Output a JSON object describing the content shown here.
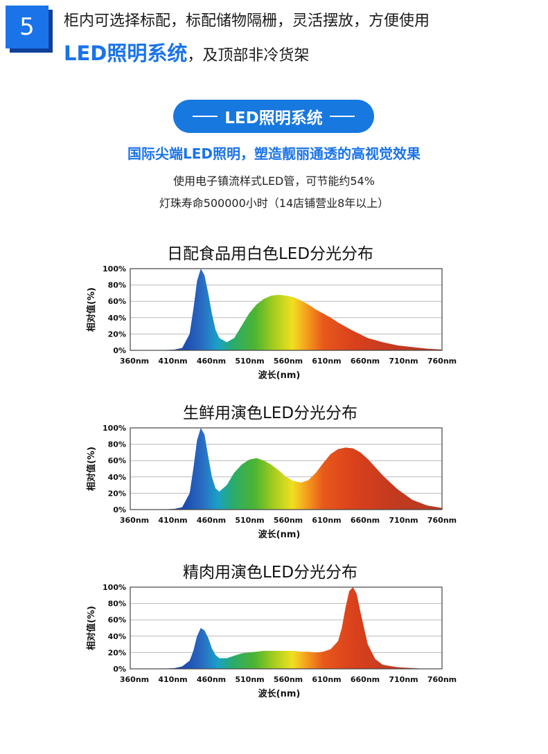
{
  "header": {
    "badge": "5",
    "line1": "柜内可选择标配，标配储物隔栅，灵活摆放，方便使用",
    "line2_highlight": "LED照明系统",
    "line2_rest": "，及顶部非冷货架"
  },
  "section": {
    "pill": "LED照明系统",
    "subtitle": "国际尖端LED照明，塑造靓丽通透的高视觉效果",
    "desc1": "使用电子镇流样式LED管，可节能约54%",
    "desc2": "灯珠寿命500000小时（14店铺营业8年以上）"
  },
  "colors": {
    "accent": "#1a73e8",
    "badge_shadow": "#0f3f9a"
  },
  "chart_data": [
    {
      "type": "area",
      "title": "日配食品用白色LED分光分布",
      "xlabel": "波长(nm)",
      "ylabel": "相对值(%)",
      "x_ticks": [
        "360nm",
        "410nm",
        "460nm",
        "510nm",
        "560nm",
        "610nm",
        "660nm",
        "710nm",
        "760nm"
      ],
      "y_ticks": [
        "0%",
        "20%",
        "40%",
        "60%",
        "80%",
        "100%"
      ],
      "xlim": [
        360,
        780
      ],
      "ylim": [
        0,
        100
      ],
      "grid": true,
      "x": [
        360,
        380,
        400,
        410,
        420,
        430,
        440,
        445,
        450,
        455,
        460,
        465,
        470,
        475,
        480,
        490,
        500,
        510,
        520,
        530,
        540,
        550,
        560,
        570,
        580,
        590,
        600,
        610,
        620,
        630,
        640,
        660,
        680,
        700,
        720,
        740,
        760,
        780
      ],
      "y": [
        0,
        0,
        0,
        0.5,
        1,
        3,
        20,
        50,
        85,
        100,
        92,
        70,
        45,
        25,
        15,
        10,
        15,
        30,
        45,
        56,
        63,
        67,
        68,
        67,
        65,
        61,
        56,
        50,
        45,
        40,
        34,
        24,
        15,
        10,
        6,
        4,
        2,
        1
      ]
    },
    {
      "type": "area",
      "title": "生鲜用演色LED分光分布",
      "xlabel": "波长(nm)",
      "ylabel": "相对值(%)",
      "x_ticks": [
        "360nm",
        "410nm",
        "460nm",
        "510nm",
        "560nm",
        "610nm",
        "660nm",
        "710nm",
        "760nm"
      ],
      "y_ticks": [
        "0%",
        "20%",
        "40%",
        "60%",
        "80%",
        "100%"
      ],
      "xlim": [
        360,
        780
      ],
      "ylim": [
        0,
        100
      ],
      "grid": true,
      "x": [
        360,
        380,
        400,
        420,
        430,
        440,
        445,
        450,
        455,
        460,
        465,
        470,
        475,
        480,
        490,
        500,
        510,
        520,
        530,
        540,
        550,
        560,
        570,
        580,
        590,
        600,
        610,
        620,
        630,
        640,
        650,
        660,
        670,
        680,
        690,
        700,
        720,
        740,
        760,
        780
      ],
      "y": [
        0,
        0,
        0,
        1,
        3,
        20,
        50,
        85,
        100,
        92,
        65,
        40,
        26,
        22,
        30,
        45,
        55,
        61,
        63,
        60,
        55,
        48,
        40,
        35,
        33,
        36,
        45,
        57,
        68,
        74,
        76,
        75,
        70,
        62,
        52,
        42,
        25,
        12,
        5,
        2
      ]
    },
    {
      "type": "area",
      "title": "精肉用演色LED分光分布",
      "xlabel": "波长(nm)",
      "ylabel": "相对值(%)",
      "x_ticks": [
        "360nm",
        "410nm",
        "460nm",
        "510nm",
        "560nm",
        "610nm",
        "660nm",
        "710nm",
        "760nm"
      ],
      "y_ticks": [
        "0%",
        "20%",
        "40%",
        "60%",
        "80%",
        "100%"
      ],
      "xlim": [
        360,
        780
      ],
      "ylim": [
        0,
        100
      ],
      "grid": true,
      "x": [
        360,
        380,
        400,
        420,
        430,
        440,
        445,
        450,
        455,
        460,
        465,
        470,
        475,
        480,
        490,
        500,
        510,
        520,
        530,
        540,
        550,
        560,
        570,
        580,
        590,
        600,
        610,
        620,
        630,
        640,
        645,
        650,
        655,
        660,
        665,
        670,
        680,
        690,
        700,
        720,
        740,
        760,
        780
      ],
      "y": [
        0,
        0,
        0,
        1,
        3,
        10,
        22,
        40,
        50,
        47,
        38,
        25,
        17,
        13,
        13,
        16,
        19,
        20,
        21,
        22,
        22,
        22,
        22,
        22,
        21,
        21,
        20,
        21,
        24,
        34,
        50,
        75,
        95,
        100,
        92,
        70,
        30,
        12,
        5,
        2,
        1,
        0,
        0
      ]
    }
  ]
}
